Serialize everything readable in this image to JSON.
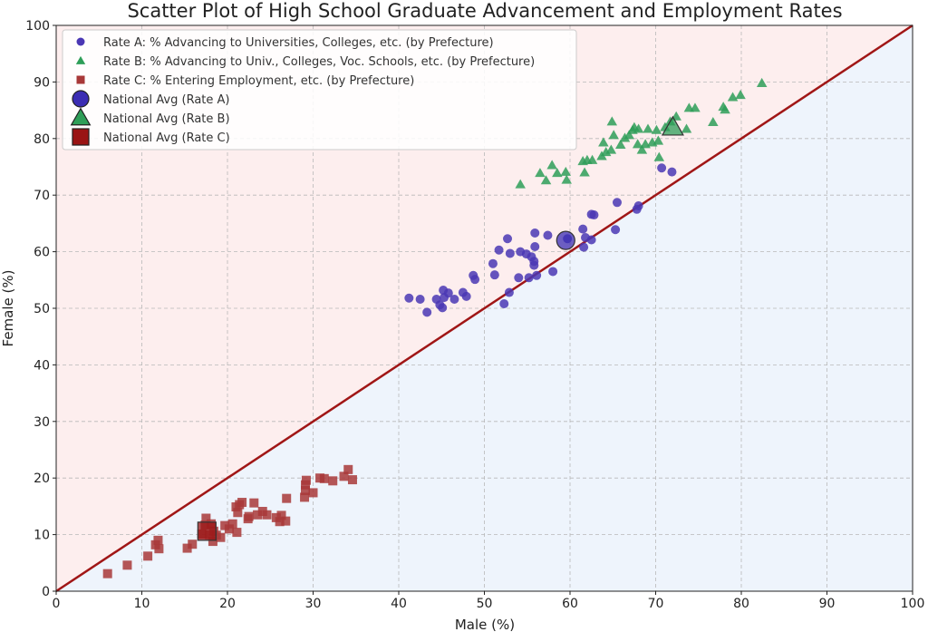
{
  "chart_data": {
    "type": "scatter",
    "title": "Scatter Plot of High School Graduate Advancement and Employment Rates",
    "xlabel": "Male (%)",
    "ylabel": "Female (%)",
    "xlim": [
      0,
      100
    ],
    "ylim": [
      0,
      100
    ],
    "x_ticks": [
      0,
      10,
      20,
      30,
      40,
      50,
      60,
      70,
      80,
      90,
      100
    ],
    "y_ticks": [
      0,
      10,
      20,
      30,
      40,
      50,
      60,
      70,
      80,
      90,
      100
    ],
    "grid": true,
    "legend_position": "top-left",
    "background": {
      "above_diagonal": "#fdeeee",
      "below_diagonal": "#eef4fc"
    },
    "reference_line": {
      "from": [
        0,
        0
      ],
      "to": [
        100,
        100
      ],
      "color": "#a01616"
    },
    "series": [
      {
        "name": "Rate A: % Advancing to Universities, Colleges, etc. (by Prefecture)",
        "marker": "circle",
        "color": "#4a37b4",
        "points": [
          [
            41.2,
            51.8
          ],
          [
            42.5,
            51.6
          ],
          [
            43.3,
            49.3
          ],
          [
            44.4,
            51.6
          ],
          [
            44.8,
            50.6
          ],
          [
            45.1,
            50.1
          ],
          [
            45.3,
            51.9
          ],
          [
            45.2,
            53.2
          ],
          [
            45.8,
            52.7
          ],
          [
            46.5,
            51.6
          ],
          [
            47.5,
            52.8
          ],
          [
            47.9,
            52.1
          ],
          [
            48.7,
            55.8
          ],
          [
            48.9,
            55.1
          ],
          [
            51.0,
            57.9
          ],
          [
            51.2,
            55.9
          ],
          [
            51.7,
            60.3
          ],
          [
            52.3,
            50.8
          ],
          [
            52.7,
            62.3
          ],
          [
            52.9,
            52.8
          ],
          [
            53.0,
            59.7
          ],
          [
            54.0,
            55.4
          ],
          [
            54.2,
            60.0
          ],
          [
            54.9,
            59.6
          ],
          [
            55.2,
            55.4
          ],
          [
            55.5,
            59.1
          ],
          [
            55.8,
            58.3
          ],
          [
            55.8,
            57.6
          ],
          [
            55.9,
            60.9
          ],
          [
            55.9,
            63.3
          ],
          [
            56.1,
            55.8
          ],
          [
            57.4,
            62.9
          ],
          [
            58.0,
            56.5
          ],
          [
            59.7,
            62.3
          ],
          [
            61.5,
            64.0
          ],
          [
            61.6,
            60.8
          ],
          [
            61.8,
            62.5
          ],
          [
            62.5,
            62.1
          ],
          [
            62.5,
            66.6
          ],
          [
            62.8,
            66.5
          ],
          [
            65.3,
            63.9
          ],
          [
            65.5,
            68.7
          ],
          [
            67.8,
            67.5
          ],
          [
            68.0,
            68.1
          ],
          [
            70.7,
            74.8
          ],
          [
            71.9,
            74.1
          ]
        ]
      },
      {
        "name": "Rate B: % Advancing to Univ., Colleges, Voc. Schools, etc. (by Prefecture)",
        "marker": "triangle",
        "color": "#2e9e58",
        "points": [
          [
            54.2,
            71.9
          ],
          [
            56.5,
            73.9
          ],
          [
            57.2,
            72.6
          ],
          [
            57.9,
            75.3
          ],
          [
            58.5,
            73.9
          ],
          [
            59.6,
            72.7
          ],
          [
            59.5,
            74.1
          ],
          [
            61.5,
            76.0
          ],
          [
            61.7,
            74.0
          ],
          [
            62.0,
            76.2
          ],
          [
            62.6,
            76.2
          ],
          [
            63.7,
            76.9
          ],
          [
            63.9,
            79.3
          ],
          [
            64.2,
            77.6
          ],
          [
            64.8,
            78.0
          ],
          [
            64.9,
            83.0
          ],
          [
            65.1,
            80.6
          ],
          [
            65.9,
            78.9
          ],
          [
            66.4,
            80.1
          ],
          [
            66.9,
            80.6
          ],
          [
            67.3,
            81.5
          ],
          [
            67.5,
            82.0
          ],
          [
            68.0,
            81.7
          ],
          [
            67.9,
            79.0
          ],
          [
            68.4,
            78.0
          ],
          [
            68.8,
            79.0
          ],
          [
            69.1,
            81.7
          ],
          [
            69.6,
            79.3
          ],
          [
            70.1,
            81.5
          ],
          [
            70.3,
            79.6
          ],
          [
            70.4,
            76.7
          ],
          [
            71.1,
            82.0
          ],
          [
            71.7,
            83.0
          ],
          [
            72.4,
            83.9
          ],
          [
            73.6,
            81.7
          ],
          [
            73.9,
            85.4
          ],
          [
            74.6,
            85.4
          ],
          [
            76.7,
            82.9
          ],
          [
            77.9,
            85.6
          ],
          [
            78.1,
            85.1
          ],
          [
            79.0,
            87.3
          ],
          [
            79.9,
            87.7
          ],
          [
            82.4,
            89.8
          ]
        ]
      },
      {
        "name": "Rate C: % Entering Employment, etc. (by Prefecture)",
        "marker": "square",
        "color": "#a83838",
        "points": [
          [
            6.0,
            3.1
          ],
          [
            8.3,
            4.6
          ],
          [
            10.7,
            6.2
          ],
          [
            11.6,
            8.2
          ],
          [
            11.9,
            9.0
          ],
          [
            12.0,
            7.5
          ],
          [
            15.3,
            7.6
          ],
          [
            15.9,
            8.3
          ],
          [
            17.0,
            10.1
          ],
          [
            17.4,
            11.7
          ],
          [
            17.5,
            12.9
          ],
          [
            17.9,
            10.0
          ],
          [
            18.1,
            11.9
          ],
          [
            18.4,
            10.6
          ],
          [
            18.3,
            8.8
          ],
          [
            18.7,
            9.9
          ],
          [
            19.2,
            9.5
          ],
          [
            19.7,
            11.6
          ],
          [
            20.2,
            11.0
          ],
          [
            20.6,
            11.9
          ],
          [
            21.0,
            14.9
          ],
          [
            21.1,
            10.4
          ],
          [
            21.2,
            13.9
          ],
          [
            21.4,
            15.3
          ],
          [
            21.7,
            15.7
          ],
          [
            22.4,
            12.8
          ],
          [
            22.5,
            13.2
          ],
          [
            23.1,
            15.6
          ],
          [
            23.5,
            13.5
          ],
          [
            24.1,
            14.1
          ],
          [
            24.6,
            13.5
          ],
          [
            25.7,
            13.0
          ],
          [
            26.1,
            12.3
          ],
          [
            26.3,
            13.4
          ],
          [
            26.8,
            12.4
          ],
          [
            26.9,
            16.4
          ],
          [
            29.0,
            16.6
          ],
          [
            29.1,
            17.8
          ],
          [
            29.1,
            18.8
          ],
          [
            29.2,
            19.6
          ],
          [
            30.0,
            17.4
          ],
          [
            30.8,
            20.0
          ],
          [
            31.3,
            19.9
          ],
          [
            32.3,
            19.5
          ],
          [
            33.6,
            20.3
          ],
          [
            34.1,
            21.5
          ],
          [
            34.6,
            19.7
          ]
        ]
      }
    ],
    "national_averages": [
      {
        "name": "National Avg (Rate A)",
        "marker": "circle",
        "color": "#3b2db3",
        "x": 59.5,
        "y": 62.0
      },
      {
        "name": "National Avg (Rate B)",
        "marker": "triangle",
        "color": "#2e9e58",
        "x": 72.0,
        "y": 82.0
      },
      {
        "name": "National Avg (Rate C)",
        "marker": "square",
        "color": "#9a1414",
        "x": 17.6,
        "y": 10.6
      }
    ]
  }
}
